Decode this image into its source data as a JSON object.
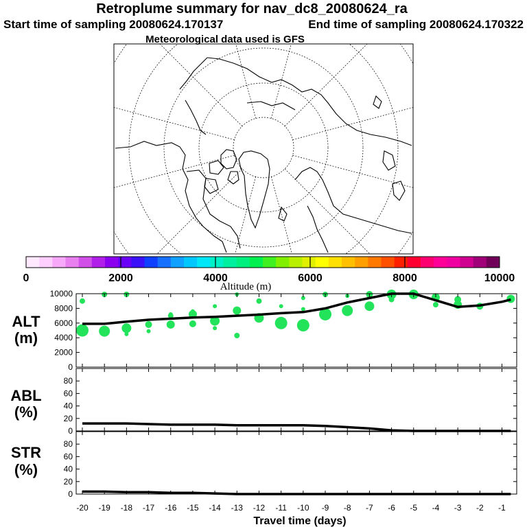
{
  "header": {
    "title": "Retroplume summary for nav_dc8_20080624_ra",
    "start_label": "Start time of sampling 20080624.170137",
    "end_label": "End time of sampling 20080624.170322",
    "met_label": "Meteorological data used is GFS"
  },
  "colorbar": {
    "label": "Altitude (m)",
    "tick_labels": [
      "0",
      "2000",
      "4000",
      "6000",
      "8000",
      "10000"
    ],
    "colors": [
      "#ffe9ff",
      "#ffcfff",
      "#f8a8f8",
      "#e880f0",
      "#d050e8",
      "#b020e8",
      "#8c00f0",
      "#6a00f8",
      "#3a10f8",
      "#1040ff",
      "#1870ff",
      "#10a0ff",
      "#00c8ff",
      "#00e8f8",
      "#00f0c8",
      "#00f0a0",
      "#00f080",
      "#00f050",
      "#40f020",
      "#80f000",
      "#b8f000",
      "#e0f000",
      "#ffff00",
      "#ffe000",
      "#ffc000",
      "#ffa000",
      "#ff7800",
      "#ff5000",
      "#ff2000",
      "#ff0030",
      "#ff0070",
      "#ff0098",
      "#f000a0",
      "#d00090",
      "#a00078",
      "#700058"
    ]
  },
  "panels": {
    "alt": {
      "label_line1": "ALT",
      "label_line2": "(m)",
      "tick_labels": [
        "0",
        "2000",
        "4000",
        "6000",
        "8000",
        "10000"
      ]
    },
    "abl": {
      "label_line1": "ABL",
      "label_line2": "(%)",
      "tick_labels": [
        "0",
        "20",
        "40",
        "60",
        "80"
      ]
    },
    "str": {
      "label_line1": "STR",
      "label_line2": "(%)",
      "tick_labels": [
        "0",
        "20",
        "40",
        "60",
        "80"
      ]
    }
  },
  "x_axis": {
    "label": "Travel time (days)",
    "tick_labels": [
      "-20",
      "-19",
      "-18",
      "-17",
      "-16",
      "-15",
      "-14",
      "-13",
      "-12",
      "-11",
      "-10",
      "-9",
      "-8",
      "-7",
      "-6",
      "-5",
      "-4",
      "-3",
      "-2",
      "-1"
    ]
  },
  "chart_data": [
    {
      "type": "line",
      "title": "Retroplume summary for nav_dc8_20080624_ra",
      "xlabel": "Travel time (days)",
      "ylabel": "ALT (m)",
      "xlim": [
        -20,
        -0.5
      ],
      "ylim": [
        0,
        10000
      ],
      "series": [
        {
          "x": [
            -20,
            -19,
            -18,
            -17,
            -16,
            -15,
            -14,
            -13,
            -12,
            -11,
            -10,
            -9,
            -8,
            -7,
            -6,
            -5,
            -4,
            -3,
            -2,
            -1,
            -0.6
          ],
          "values": [
            5900,
            5900,
            6200,
            6450,
            6600,
            6750,
            6850,
            7000,
            7150,
            7350,
            7500,
            8000,
            8800,
            9400,
            10000,
            10000,
            9100,
            8200,
            8400,
            8900,
            9200
          ]
        }
      ],
      "scatter": [
        {
          "x": -20,
          "y": 5000,
          "r": 9
        },
        {
          "x": -20,
          "y": 9000,
          "r": 4
        },
        {
          "x": -19,
          "y": 4900,
          "r": 8
        },
        {
          "x": -19,
          "y": 9900,
          "r": 4
        },
        {
          "x": -18,
          "y": 5300,
          "r": 7
        },
        {
          "x": -18,
          "y": 4500,
          "r": 3
        },
        {
          "x": -18,
          "y": 10000,
          "r": 4
        },
        {
          "x": -17,
          "y": 5800,
          "r": 5
        },
        {
          "x": -17,
          "y": 4900,
          "r": 3
        },
        {
          "x": -16,
          "y": 7000,
          "r": 4
        },
        {
          "x": -16,
          "y": 5800,
          "r": 6
        },
        {
          "x": -16,
          "y": 7200,
          "r": 3
        },
        {
          "x": -15,
          "y": 7200,
          "r": 6
        },
        {
          "x": -15,
          "y": 5900,
          "r": 5
        },
        {
          "x": -15,
          "y": 7600,
          "r": 3
        },
        {
          "x": -14,
          "y": 6300,
          "r": 7
        },
        {
          "x": -14,
          "y": 5300,
          "r": 3
        },
        {
          "x": -14,
          "y": 8300,
          "r": 3
        },
        {
          "x": -13,
          "y": 7700,
          "r": 6
        },
        {
          "x": -13,
          "y": 4300,
          "r": 4
        },
        {
          "x": -13,
          "y": 10000,
          "r": 3
        },
        {
          "x": -12,
          "y": 6700,
          "r": 7
        },
        {
          "x": -12,
          "y": 9000,
          "r": 4
        },
        {
          "x": -11,
          "y": 6000,
          "r": 9
        },
        {
          "x": -11,
          "y": 8300,
          "r": 3
        },
        {
          "x": -10,
          "y": 5700,
          "r": 9
        },
        {
          "x": -10,
          "y": 9400,
          "r": 3
        },
        {
          "x": -10,
          "y": 7900,
          "r": 3
        },
        {
          "x": -9,
          "y": 7200,
          "r": 9
        },
        {
          "x": -9,
          "y": 9900,
          "r": 4
        },
        {
          "x": -8,
          "y": 7700,
          "r": 8
        },
        {
          "x": -8,
          "y": 9700,
          "r": 3
        },
        {
          "x": -7,
          "y": 8300,
          "r": 7
        },
        {
          "x": -7,
          "y": 10000,
          "r": 5
        },
        {
          "x": -6,
          "y": 10000,
          "r": 7
        },
        {
          "x": -6,
          "y": 9200,
          "r": 4
        },
        {
          "x": -5,
          "y": 10000,
          "r": 7
        },
        {
          "x": -4,
          "y": 9500,
          "r": 6
        },
        {
          "x": -4,
          "y": 8500,
          "r": 4
        },
        {
          "x": -3,
          "y": 8500,
          "r": 6
        },
        {
          "x": -3,
          "y": 9200,
          "r": 5
        },
        {
          "x": -2,
          "y": 8300,
          "r": 5
        },
        {
          "x": -0.6,
          "y": 9300,
          "r": 6
        }
      ]
    },
    {
      "type": "line",
      "ylabel": "ABL (%)",
      "xlim": [
        -20,
        -0.5
      ],
      "ylim": [
        0,
        100
      ],
      "series": [
        {
          "x": [
            -20,
            -19,
            -18,
            -17,
            -16,
            -15,
            -14,
            -13,
            -12,
            -11,
            -10,
            -9,
            -8,
            -7,
            -6,
            -5,
            -4,
            -3,
            -2,
            -1,
            -0.6
          ],
          "values": [
            12,
            12,
            12,
            11,
            10,
            10,
            10,
            9,
            9,
            9,
            9,
            8,
            6,
            4,
            1,
            0,
            0,
            0,
            0,
            0,
            0
          ]
        }
      ]
    },
    {
      "type": "line",
      "ylabel": "STR (%)",
      "xlim": [
        -20,
        -0.5
      ],
      "ylim": [
        0,
        100
      ],
      "series": [
        {
          "x": [
            -20,
            -19,
            -18,
            -17,
            -16,
            -15,
            -14,
            -13,
            -12,
            -11,
            -10,
            -9,
            -8,
            -7,
            -6,
            -5,
            -4,
            -3,
            -2,
            -1,
            -0.6
          ],
          "values": [
            4,
            4,
            3,
            3,
            2,
            2,
            1,
            0,
            0,
            0,
            0,
            0,
            0,
            0,
            0,
            0,
            0,
            0,
            0,
            0,
            0
          ]
        }
      ]
    }
  ]
}
